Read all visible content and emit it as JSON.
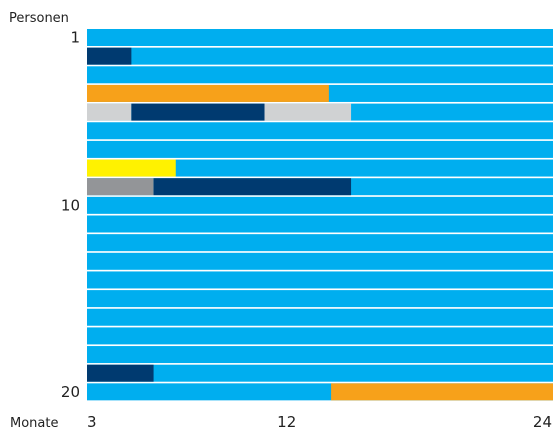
{
  "chart_data": {
    "type": "bar",
    "orientation": "horizontal-stacked-timeline",
    "ylabel": "Personen",
    "xlabel": "Monate",
    "x_range": [
      3,
      24
    ],
    "x_ticks": [
      "3",
      "12",
      "24"
    ],
    "y_ticks": [
      {
        "row": 1,
        "label": "1"
      },
      {
        "row": 10,
        "label": "10"
      },
      {
        "row": 20,
        "label": "20"
      }
    ],
    "colors": {
      "background_state": "#00aeef",
      "navy": "#003a70",
      "orange": "#f7a11a",
      "light_gray": "#d0d2d3",
      "yellow": "#fff200",
      "gray": "#939598"
    },
    "rows": [
      {
        "person": 1,
        "segments": []
      },
      {
        "person": 2,
        "segments": [
          {
            "start": 3,
            "end": 5,
            "color": "navy"
          }
        ]
      },
      {
        "person": 3,
        "segments": []
      },
      {
        "person": 4,
        "segments": [
          {
            "start": 3,
            "end": 13.9,
            "color": "orange"
          }
        ]
      },
      {
        "person": 5,
        "segments": [
          {
            "start": 3,
            "end": 5,
            "color": "light_gray"
          },
          {
            "start": 5,
            "end": 11,
            "color": "navy"
          },
          {
            "start": 11,
            "end": 14.9,
            "color": "light_gray"
          }
        ]
      },
      {
        "person": 6,
        "segments": []
      },
      {
        "person": 7,
        "segments": []
      },
      {
        "person": 8,
        "segments": [
          {
            "start": 3,
            "end": 7,
            "color": "yellow"
          }
        ]
      },
      {
        "person": 9,
        "segments": [
          {
            "start": 3,
            "end": 6,
            "color": "gray"
          },
          {
            "start": 6,
            "end": 14.9,
            "color": "navy"
          }
        ]
      },
      {
        "person": 10,
        "segments": []
      },
      {
        "person": 11,
        "segments": []
      },
      {
        "person": 12,
        "segments": []
      },
      {
        "person": 13,
        "segments": []
      },
      {
        "person": 14,
        "segments": []
      },
      {
        "person": 15,
        "segments": []
      },
      {
        "person": 16,
        "segments": []
      },
      {
        "person": 17,
        "segments": []
      },
      {
        "person": 18,
        "segments": []
      },
      {
        "person": 19,
        "segments": [
          {
            "start": 3,
            "end": 6,
            "color": "navy"
          }
        ]
      },
      {
        "person": 20,
        "segments": [
          {
            "start": 14,
            "end": 24,
            "color": "orange"
          }
        ]
      }
    ]
  }
}
